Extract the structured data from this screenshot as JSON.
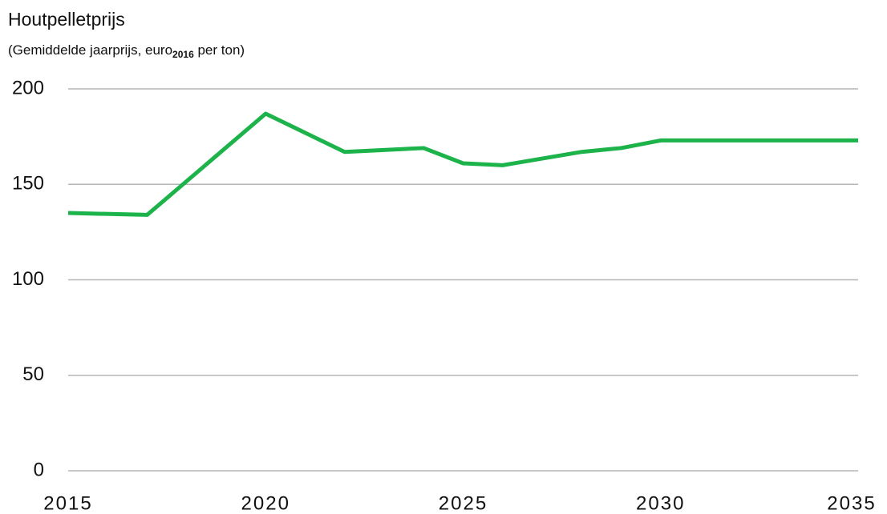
{
  "chart_data": {
    "type": "line",
    "title": "Houtpelletprijs",
    "subtitle": {
      "text": "(Gemiddelde jaarprijs, euro",
      "sub": "2016",
      "rest": " per ton)"
    },
    "x": [
      2015,
      2017,
      2020,
      2022,
      2024,
      2025,
      2026,
      2028,
      2029,
      2030,
      2035
    ],
    "series": [
      {
        "name": "Houtpelletprijs",
        "color": "#1db34b",
        "values": [
          135,
          134,
          187,
          167,
          169,
          161,
          160,
          167,
          169,
          173,
          173
        ]
      }
    ],
    "xlim": [
      2015,
      2035
    ],
    "xticks": [
      2015,
      2020,
      2025,
      2030,
      2035
    ],
    "ylim": [
      0,
      200
    ],
    "yticks": [
      0,
      50,
      100,
      150,
      200
    ],
    "grid": true
  }
}
